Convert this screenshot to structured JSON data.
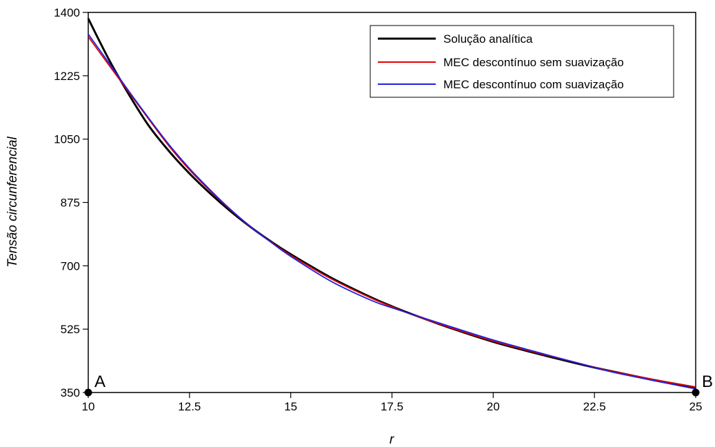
{
  "chart_data": {
    "type": "line",
    "xlabel": "r",
    "ylabel": "Tensão circunferencial",
    "xlim": [
      10,
      25
    ],
    "ylim": [
      350,
      1400
    ],
    "xticks": [
      "10",
      "12.5",
      "15",
      "17.5",
      "20",
      "22.5",
      "25"
    ],
    "yticks": [
      "350",
      "525",
      "700",
      "875",
      "1050",
      "1225",
      "1400"
    ],
    "grid": false,
    "legend_position": "top-right",
    "series": [
      {
        "name": "Solução analítica",
        "color": "#000000",
        "x": [
          10,
          10.5,
          11,
          11.5,
          12,
          12.5,
          13,
          13.5,
          14,
          14.5,
          15,
          16,
          17,
          17.5,
          18,
          19,
          20,
          21,
          22,
          22.5,
          23,
          24,
          25
        ],
        "y": [
          1383,
          1272,
          1174,
          1086,
          1016,
          955,
          901,
          852,
          808,
          768,
          732,
          667,
          612,
          588,
          566,
          526,
          490,
          460,
          432,
          419,
          407,
          384,
          364
        ]
      },
      {
        "name": "MEC descontínuo sem suavização",
        "color": "#e00000",
        "x": [
          10,
          10.5,
          11,
          11.5,
          12,
          12.5,
          13,
          13.5,
          14,
          14.5,
          15,
          16,
          17,
          17.5,
          18,
          19,
          20,
          21,
          22,
          22.5,
          23,
          24,
          25
        ],
        "y": [
          1333,
          1256,
          1180,
          1104,
          1030,
          965,
          908,
          856,
          808,
          767,
          729,
          664,
          610,
          587,
          565,
          527,
          492,
          462,
          434,
          420,
          407,
          385,
          365
        ]
      },
      {
        "name": "MEC descontínuo com suavização",
        "color": "#2020e0",
        "x": [
          10,
          10.5,
          11,
          11.5,
          12,
          12.5,
          13,
          13.5,
          14,
          14.5,
          15,
          16,
          17,
          17.5,
          18,
          19,
          20,
          21,
          22,
          22.5,
          23,
          24,
          25
        ],
        "y": [
          1340,
          1262,
          1183,
          1107,
          1034,
          969,
          911,
          857,
          809,
          766,
          726,
          657,
          604,
          584,
          566,
          530,
          495,
          464,
          434,
          419,
          405,
          382,
          360
        ]
      }
    ],
    "annotations": [
      {
        "label": "A",
        "x": 10,
        "y": 350
      },
      {
        "label": "B",
        "x": 25,
        "y": 350
      }
    ]
  }
}
